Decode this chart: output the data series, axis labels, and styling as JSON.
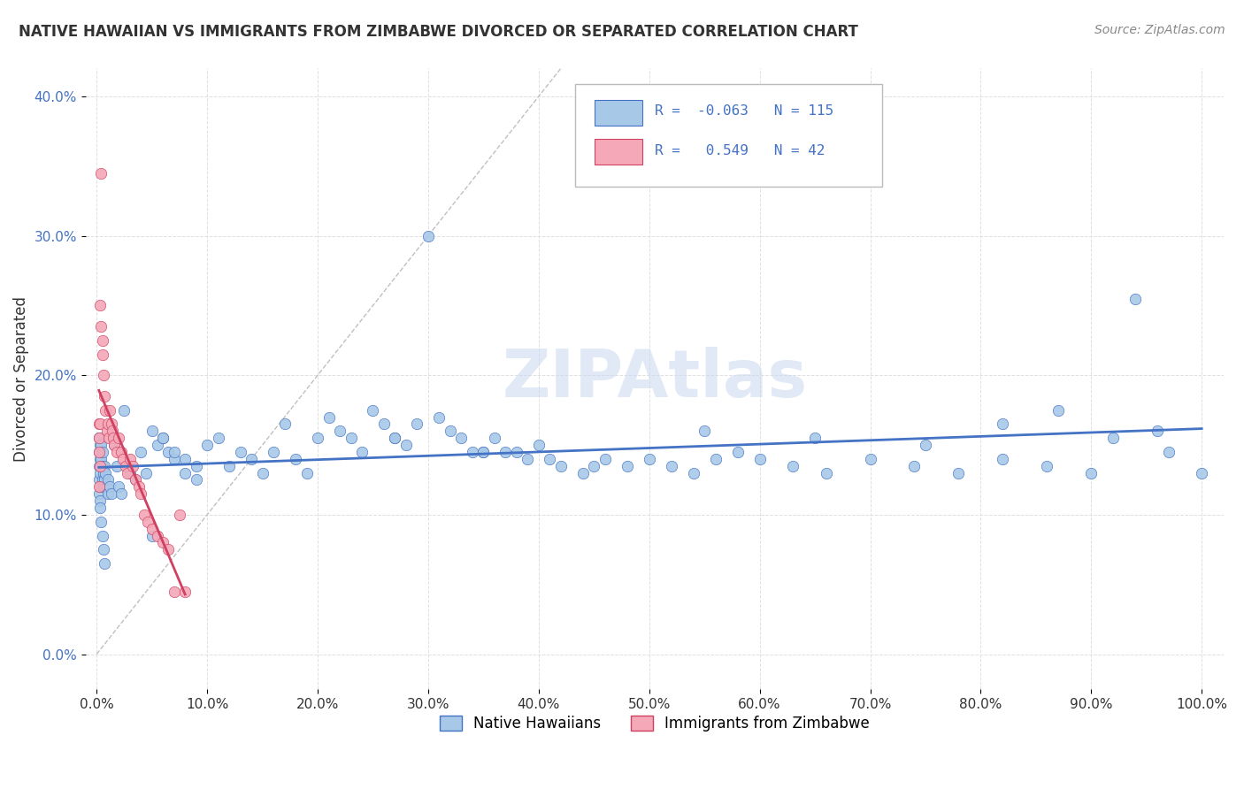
{
  "title": "NATIVE HAWAIIAN VS IMMIGRANTS FROM ZIMBABWE DIVORCED OR SEPARATED CORRELATION CHART",
  "source": "Source: ZipAtlas.com",
  "ylabel": "Divorced or Separated",
  "legend_label1": "Native Hawaiians",
  "legend_label2": "Immigrants from Zimbabwe",
  "r1": -0.063,
  "n1": 115,
  "r2": 0.549,
  "n2": 42,
  "color1": "#a8c8e8",
  "color2": "#f4a8b8",
  "line_color1": "#4472c4",
  "line_color2": "#d04060",
  "background": "#ffffff",
  "xlim": [
    -0.01,
    1.02
  ],
  "ylim": [
    -0.025,
    0.42
  ],
  "xticks": [
    0.0,
    0.1,
    0.2,
    0.3,
    0.4,
    0.5,
    0.6,
    0.7,
    0.8,
    0.9,
    1.0
  ],
  "yticks": [
    0.0,
    0.1,
    0.2,
    0.3,
    0.4
  ],
  "native_x": [
    0.002,
    0.002,
    0.002,
    0.002,
    0.002,
    0.003,
    0.003,
    0.003,
    0.003,
    0.003,
    0.004,
    0.004,
    0.005,
    0.005,
    0.005,
    0.006,
    0.006,
    0.007,
    0.007,
    0.008,
    0.009,
    0.01,
    0.01,
    0.012,
    0.013,
    0.015,
    0.016,
    0.018,
    0.02,
    0.022,
    0.025,
    0.03,
    0.035,
    0.04,
    0.045,
    0.05,
    0.055,
    0.06,
    0.065,
    0.07,
    0.08,
    0.09,
    0.1,
    0.11,
    0.12,
    0.13,
    0.14,
    0.15,
    0.16,
    0.17,
    0.18,
    0.19,
    0.2,
    0.21,
    0.22,
    0.23,
    0.24,
    0.25,
    0.26,
    0.27,
    0.28,
    0.29,
    0.3,
    0.31,
    0.32,
    0.33,
    0.34,
    0.35,
    0.36,
    0.37,
    0.38,
    0.39,
    0.4,
    0.41,
    0.42,
    0.44,
    0.46,
    0.48,
    0.5,
    0.52,
    0.54,
    0.56,
    0.58,
    0.6,
    0.63,
    0.66,
    0.7,
    0.74,
    0.78,
    0.82,
    0.86,
    0.9,
    0.94,
    0.97,
    1.0,
    0.05,
    0.06,
    0.07,
    0.08,
    0.09,
    0.27,
    0.35,
    0.45,
    0.55,
    0.65,
    0.75,
    0.82,
    0.87,
    0.92,
    0.96,
    0.003,
    0.004,
    0.005,
    0.006,
    0.007
  ],
  "native_y": [
    0.155,
    0.145,
    0.135,
    0.125,
    0.115,
    0.15,
    0.14,
    0.13,
    0.12,
    0.11,
    0.15,
    0.14,
    0.145,
    0.135,
    0.125,
    0.13,
    0.12,
    0.135,
    0.125,
    0.13,
    0.12,
    0.125,
    0.115,
    0.12,
    0.115,
    0.155,
    0.15,
    0.135,
    0.12,
    0.115,
    0.175,
    0.13,
    0.125,
    0.145,
    0.13,
    0.16,
    0.15,
    0.155,
    0.145,
    0.14,
    0.13,
    0.125,
    0.15,
    0.155,
    0.135,
    0.145,
    0.14,
    0.13,
    0.145,
    0.165,
    0.14,
    0.13,
    0.155,
    0.17,
    0.16,
    0.155,
    0.145,
    0.175,
    0.165,
    0.155,
    0.15,
    0.165,
    0.3,
    0.17,
    0.16,
    0.155,
    0.145,
    0.145,
    0.155,
    0.145,
    0.145,
    0.14,
    0.15,
    0.14,
    0.135,
    0.13,
    0.14,
    0.135,
    0.14,
    0.135,
    0.13,
    0.14,
    0.145,
    0.14,
    0.135,
    0.13,
    0.14,
    0.135,
    0.13,
    0.14,
    0.135,
    0.13,
    0.255,
    0.145,
    0.13,
    0.085,
    0.155,
    0.145,
    0.14,
    0.135,
    0.155,
    0.145,
    0.135,
    0.16,
    0.155,
    0.15,
    0.165,
    0.175,
    0.155,
    0.16,
    0.105,
    0.095,
    0.085,
    0.075,
    0.065
  ],
  "zimbabwe_x": [
    0.002,
    0.002,
    0.002,
    0.002,
    0.003,
    0.003,
    0.003,
    0.004,
    0.004,
    0.005,
    0.005,
    0.006,
    0.007,
    0.008,
    0.009,
    0.01,
    0.011,
    0.012,
    0.013,
    0.014,
    0.015,
    0.016,
    0.018,
    0.02,
    0.022,
    0.024,
    0.026,
    0.028,
    0.03,
    0.033,
    0.035,
    0.038,
    0.04,
    0.043,
    0.046,
    0.05,
    0.055,
    0.06,
    0.065,
    0.07,
    0.075,
    0.08
  ],
  "zimbabwe_y": [
    0.165,
    0.155,
    0.145,
    0.12,
    0.25,
    0.165,
    0.135,
    0.345,
    0.235,
    0.225,
    0.215,
    0.2,
    0.185,
    0.175,
    0.16,
    0.165,
    0.155,
    0.175,
    0.165,
    0.16,
    0.155,
    0.15,
    0.145,
    0.155,
    0.145,
    0.14,
    0.135,
    0.13,
    0.14,
    0.135,
    0.125,
    0.12,
    0.115,
    0.1,
    0.095,
    0.09,
    0.085,
    0.08,
    0.075,
    0.045,
    0.1,
    0.045
  ]
}
